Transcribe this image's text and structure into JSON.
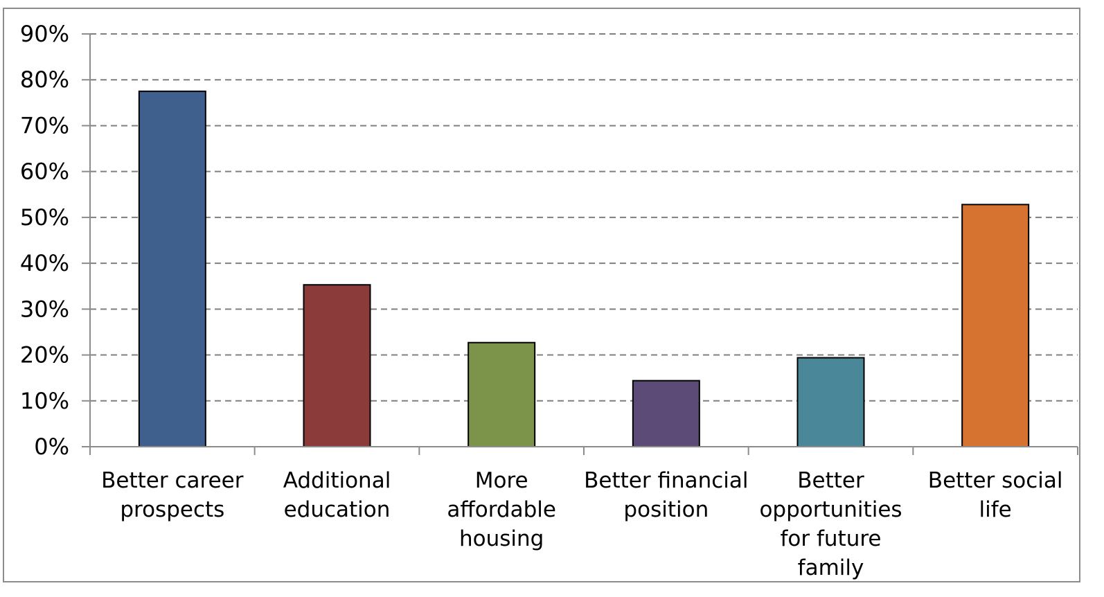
{
  "chart_data": {
    "type": "bar",
    "categories": [
      [
        "Better career",
        "prospects"
      ],
      [
        "Additional",
        "education"
      ],
      [
        "More",
        "affordable",
        "housing"
      ],
      [
        "Better financial",
        "position"
      ],
      [
        "Better",
        "opportunities",
        "for future",
        "family"
      ],
      [
        "Better social",
        "life"
      ]
    ],
    "values": [
      77.5,
      35.3,
      22.7,
      14.4,
      19.4,
      52.8
    ],
    "colors": [
      "#3f5f8c",
      "#8b3b39",
      "#7c9449",
      "#5c4b77",
      "#4a8799",
      "#d67331"
    ],
    "yticks": [
      "0%",
      "10%",
      "20%",
      "30%",
      "40%",
      "50%",
      "60%",
      "70%",
      "80%",
      "90%"
    ],
    "ylim": [
      0,
      90
    ],
    "title": "",
    "xlabel": "",
    "ylabel": "",
    "grid": true,
    "legend": "none"
  }
}
